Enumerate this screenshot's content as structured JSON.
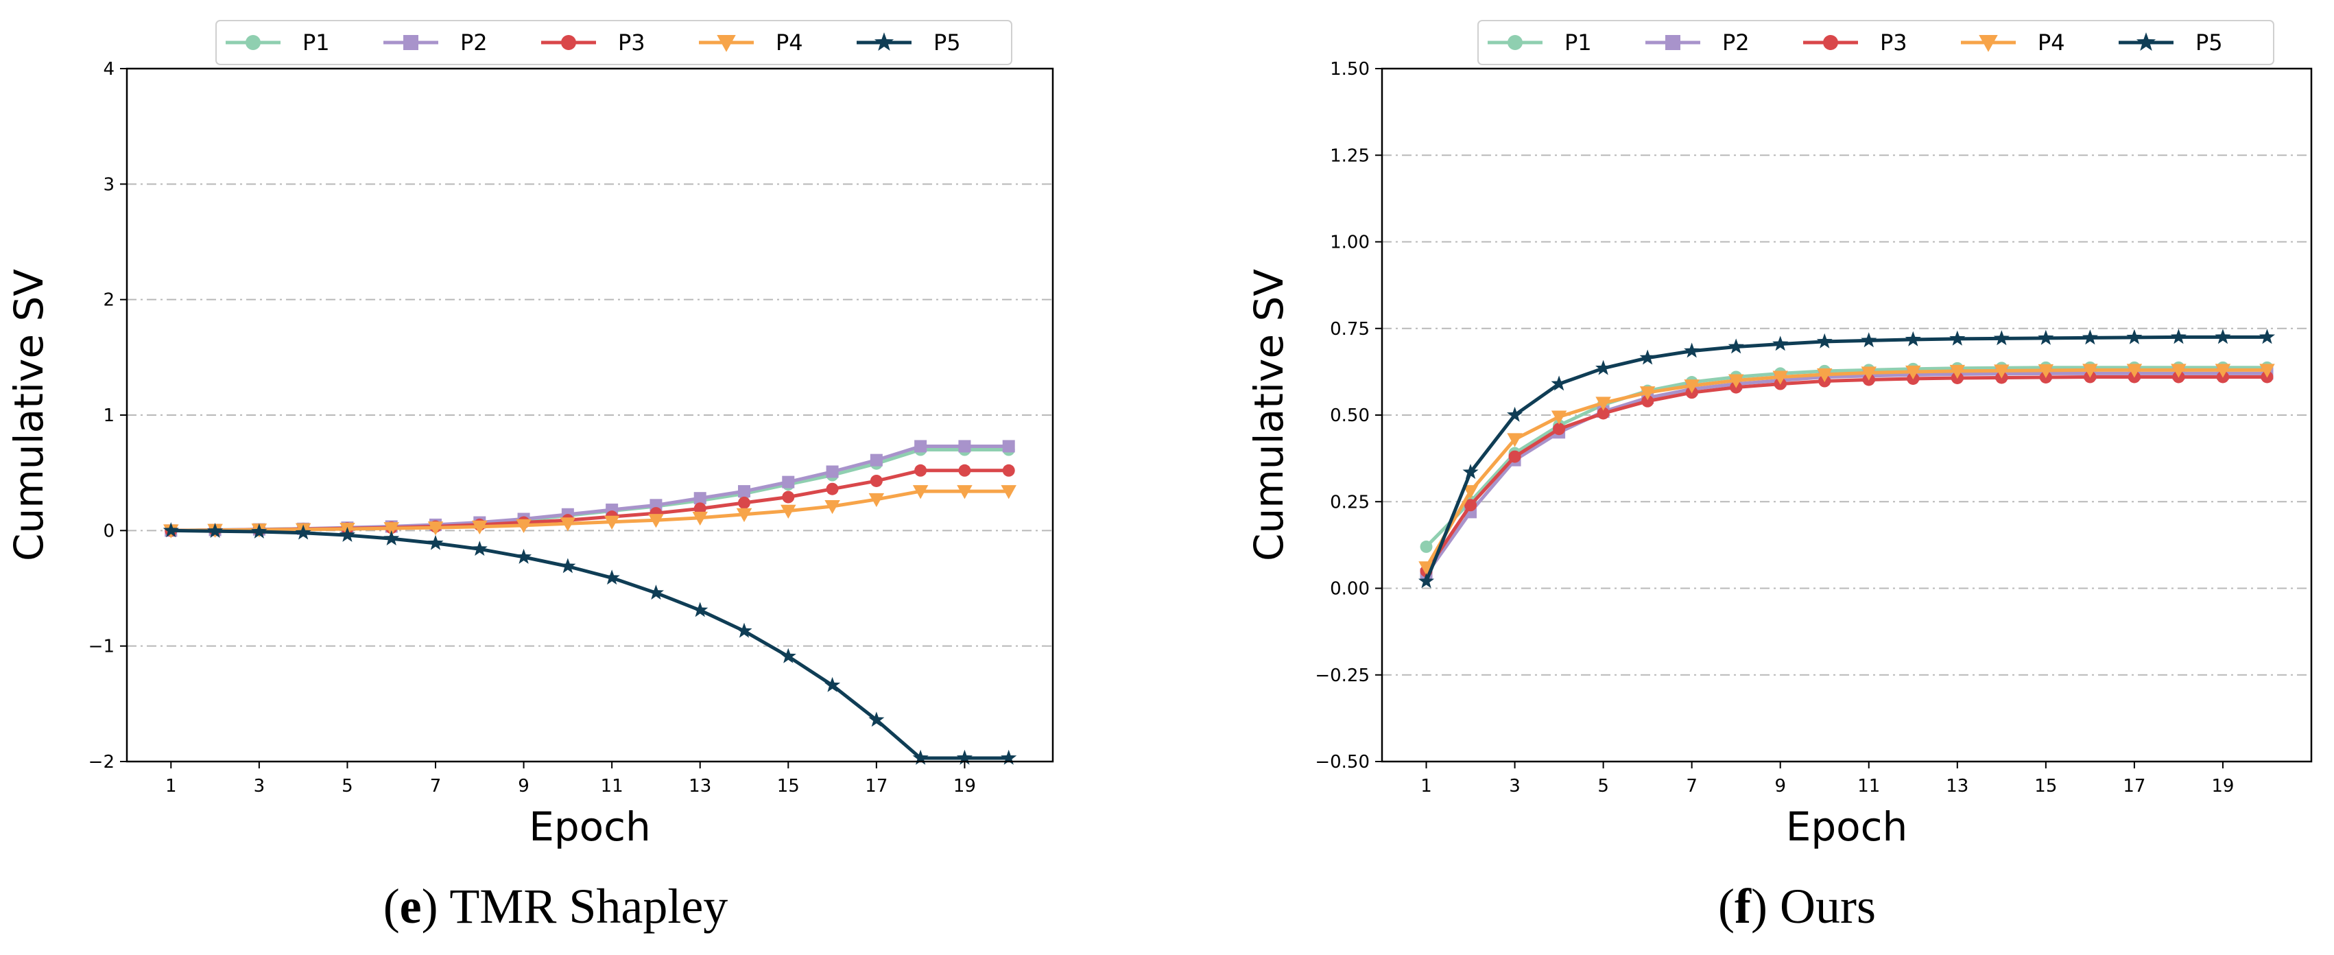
{
  "chart_data": [
    {
      "type": "line",
      "caption_letter": "e",
      "caption_text": ") TMR Shapley",
      "caption_open": "(",
      "xlabel": "Epoch",
      "ylabel": "Cumulative SV",
      "xlim": [
        0,
        21
      ],
      "ylim": [
        -2,
        4
      ],
      "yticks": [
        -2,
        -1,
        0,
        1,
        2,
        3,
        4
      ],
      "ytick_labels": [
        "−2",
        "−1",
        "0",
        "1",
        "2",
        "3",
        "4"
      ],
      "xticks": [
        1,
        3,
        5,
        7,
        9,
        11,
        13,
        15,
        17,
        19
      ],
      "xtick_labels": [
        "1",
        "3",
        "5",
        "7",
        "9",
        "11",
        "13",
        "15",
        "17",
        "19"
      ],
      "grid": "horizontal dash-dot",
      "legend": "top-center",
      "x": [
        1,
        2,
        3,
        4,
        5,
        6,
        7,
        8,
        9,
        10,
        11,
        12,
        13,
        14,
        15,
        16,
        17,
        18,
        19,
        20
      ],
      "series": [
        {
          "name": "P1",
          "color": "#8fcfb0",
          "marker": "circle",
          "values": [
            0,
            0.005,
            0.01,
            0.015,
            0.02,
            0.03,
            0.045,
            0.06,
            0.09,
            0.13,
            0.17,
            0.21,
            0.26,
            0.32,
            0.4,
            0.48,
            0.58,
            0.7,
            0.7,
            0.7
          ]
        },
        {
          "name": "P2",
          "color": "#a893cb",
          "marker": "square",
          "values": [
            0,
            0.005,
            0.01,
            0.015,
            0.025,
            0.035,
            0.05,
            0.07,
            0.1,
            0.14,
            0.18,
            0.22,
            0.28,
            0.34,
            0.42,
            0.51,
            0.61,
            0.73,
            0.73,
            0.73
          ]
        },
        {
          "name": "P3",
          "color": "#d9474a",
          "marker": "circle",
          "values": [
            0,
            0.004,
            0.008,
            0.012,
            0.018,
            0.025,
            0.035,
            0.05,
            0.07,
            0.09,
            0.12,
            0.15,
            0.19,
            0.24,
            0.29,
            0.36,
            0.43,
            0.52,
            0.52,
            0.52
          ]
        },
        {
          "name": "P4",
          "color": "#f7a449",
          "marker": "triangle-down",
          "values": [
            0,
            0.004,
            0.007,
            0.01,
            0.014,
            0.019,
            0.025,
            0.033,
            0.045,
            0.06,
            0.075,
            0.09,
            0.11,
            0.14,
            0.17,
            0.21,
            0.27,
            0.34,
            0.34,
            0.34
          ]
        },
        {
          "name": "P5",
          "color": "#0f3d55",
          "marker": "star",
          "values": [
            0,
            -0.005,
            -0.01,
            -0.02,
            -0.04,
            -0.07,
            -0.11,
            -0.16,
            -0.23,
            -0.31,
            -0.41,
            -0.54,
            -0.69,
            -0.87,
            -1.09,
            -1.34,
            -1.64,
            -1.97,
            -1.97,
            -1.97
          ]
        }
      ]
    },
    {
      "type": "line",
      "caption_letter": "f",
      "caption_text": ") Ours",
      "caption_open": "(",
      "xlabel": "Epoch",
      "ylabel": "Cumulative SV",
      "xlim": [
        0,
        21
      ],
      "ylim": [
        -0.5,
        1.5
      ],
      "yticks": [
        -0.5,
        -0.25,
        0,
        0.25,
        0.5,
        0.75,
        1.0,
        1.25,
        1.5
      ],
      "ytick_labels": [
        "−0.50",
        "−0.25",
        "0.00",
        "0.25",
        "0.50",
        "0.75",
        "1.00",
        "1.25",
        "1.50"
      ],
      "xticks": [
        1,
        3,
        5,
        7,
        9,
        11,
        13,
        15,
        17,
        19
      ],
      "xtick_labels": [
        "1",
        "3",
        "5",
        "7",
        "9",
        "11",
        "13",
        "15",
        "17",
        "19"
      ],
      "grid": "horizontal dash-dot",
      "legend": "top-center",
      "x": [
        1,
        2,
        3,
        4,
        5,
        6,
        7,
        8,
        9,
        10,
        11,
        12,
        13,
        14,
        15,
        16,
        17,
        18,
        19,
        20
      ],
      "series": [
        {
          "name": "P1",
          "color": "#8fcfb0",
          "marker": "circle",
          "values": [
            0.12,
            0.25,
            0.39,
            0.47,
            0.53,
            0.57,
            0.595,
            0.61,
            0.62,
            0.627,
            0.63,
            0.633,
            0.635,
            0.636,
            0.637,
            0.637,
            0.637,
            0.637,
            0.637,
            0.637
          ]
        },
        {
          "name": "P2",
          "color": "#a893cb",
          "marker": "square",
          "values": [
            0.04,
            0.22,
            0.37,
            0.45,
            0.51,
            0.55,
            0.575,
            0.59,
            0.6,
            0.61,
            0.613,
            0.616,
            0.618,
            0.619,
            0.62,
            0.62,
            0.62,
            0.62,
            0.62,
            0.62
          ]
        },
        {
          "name": "P3",
          "color": "#d9474a",
          "marker": "circle",
          "values": [
            0.05,
            0.24,
            0.38,
            0.46,
            0.505,
            0.54,
            0.565,
            0.58,
            0.59,
            0.598,
            0.602,
            0.605,
            0.607,
            0.608,
            0.609,
            0.61,
            0.61,
            0.61,
            0.61,
            0.61
          ]
        },
        {
          "name": "P4",
          "color": "#f7a449",
          "marker": "triangle-down",
          "values": [
            0.06,
            0.28,
            0.43,
            0.495,
            0.535,
            0.565,
            0.585,
            0.6,
            0.61,
            0.617,
            0.622,
            0.625,
            0.627,
            0.628,
            0.629,
            0.63,
            0.63,
            0.63,
            0.63,
            0.63
          ]
        },
        {
          "name": "P5",
          "color": "#0f3d55",
          "marker": "star",
          "values": [
            0.02,
            0.335,
            0.5,
            0.59,
            0.635,
            0.665,
            0.685,
            0.697,
            0.705,
            0.712,
            0.715,
            0.718,
            0.72,
            0.721,
            0.722,
            0.723,
            0.724,
            0.725,
            0.725,
            0.725
          ]
        }
      ]
    }
  ]
}
